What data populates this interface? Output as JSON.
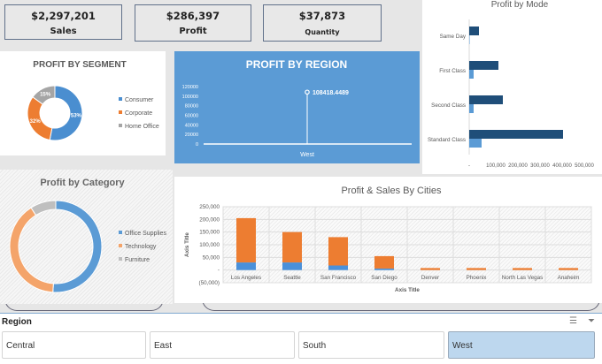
{
  "kpis": [
    {
      "value": "$2,297,201",
      "label": "Sales"
    },
    {
      "value": "$286,397",
      "label": "Profit"
    },
    {
      "value": "$37,873",
      "label": "Quantity"
    }
  ],
  "segment": {
    "title": "PROFIT BY SEGMENT",
    "items": [
      {
        "label": "Consumer",
        "pct": 53,
        "color": "#4a8ed0"
      },
      {
        "label": "Corporate",
        "pct": 32,
        "color": "#ed7d31"
      },
      {
        "label": "Home Office",
        "pct": 15,
        "color": "#a5a5a5"
      }
    ]
  },
  "region_chart": {
    "title": "PROFIT BY REGION",
    "yticks": [
      "120000",
      "100000",
      "80000",
      "60000",
      "40000",
      "20000",
      "0"
    ],
    "ymax": 120000,
    "category": "West",
    "value": 108418.4489,
    "value_label": "108418.4489"
  },
  "mode": {
    "title": "Profit by Mode",
    "categories": [
      "Same Day",
      "First Class",
      "Second Class",
      "Standard Class"
    ],
    "series": [
      {
        "values": [
          44000,
          132000,
          152000,
          424000
        ],
        "color": "#1f4e79"
      },
      {
        "values": [
          2000,
          20000,
          20000,
          56000
        ],
        "color": "#5b9bd5"
      }
    ],
    "xticks": [
      "-",
      "100,000",
      "200,000",
      "300,000",
      "400,000",
      "500,000"
    ],
    "xmax": 500000
  },
  "category": {
    "title": "Profit by Category",
    "items": [
      {
        "label": "Office Supplies",
        "pct": 51,
        "color": "#5b9bd5"
      },
      {
        "label": "Technology",
        "pct": 40,
        "color": "#f4a46a"
      },
      {
        "label": "Furniture",
        "pct": 9,
        "color": "#bfbfbf"
      }
    ]
  },
  "cities": {
    "title": "Profit & Sales By Cities",
    "ylabel": "Axis Title",
    "xlabel": "Axis Title",
    "yticks": [
      "250,000",
      "200,000",
      "150,000",
      "100,000",
      "50,000",
      "-",
      "(50,000)"
    ],
    "ymin": -50000,
    "ymax": 250000,
    "categories": [
      "Los Angeles",
      "Seattle",
      "San Francisco",
      "San Diego",
      "Denver",
      "Phoenix",
      "North Las Vegas",
      "Anaheim"
    ],
    "series": [
      {
        "values": [
          30000,
          30000,
          18000,
          6000,
          0,
          0,
          0,
          0
        ],
        "color": "#4a90d9"
      },
      {
        "values": [
          175000,
          120000,
          112000,
          49000,
          8000,
          8000,
          8000,
          8000
        ],
        "color": "#ed7d31"
      }
    ]
  },
  "slicer": {
    "title": "Region",
    "options": [
      "Central",
      "East",
      "South",
      "West"
    ],
    "selected": "West"
  }
}
